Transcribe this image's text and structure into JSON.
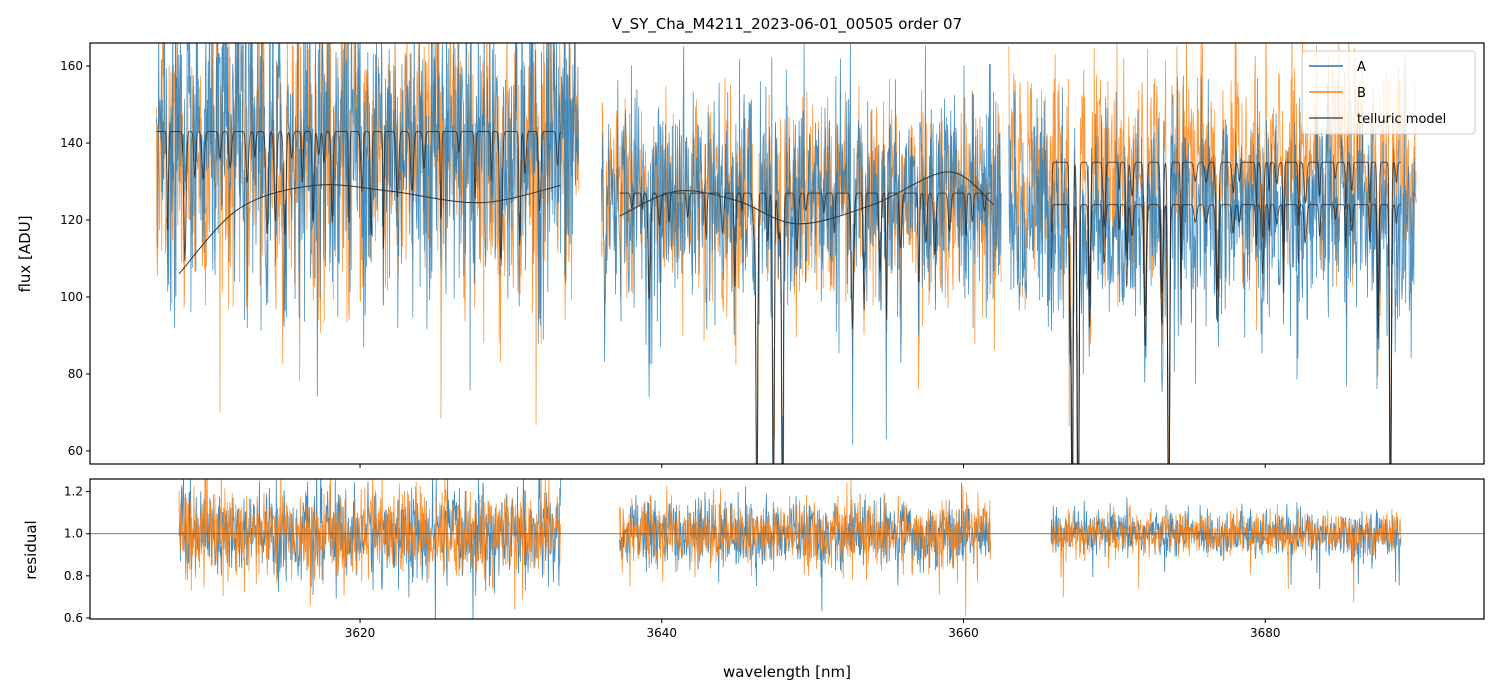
{
  "chart_data": {
    "type": "line",
    "title": "V_SY_Cha_M4211_2023-06-01_00505  order 07",
    "xlabel": "wavelength [nm]",
    "xlim": [
      3602.1,
      3694.5
    ],
    "xticks": [
      "3620",
      "3640",
      "3660",
      "3680"
    ],
    "xtick_values": [
      3620,
      3640,
      3660,
      3680
    ],
    "grid": false,
    "legend_position": "top-right",
    "panels": [
      {
        "name": "flux",
        "ylabel": "flux [ADU]",
        "ylim": [
          56.6,
          166
        ],
        "yticks": [
          "60",
          "80",
          "100",
          "120",
          "140",
          "160"
        ],
        "ytick_values": [
          60,
          80,
          100,
          120,
          140,
          160
        ],
        "series": [
          {
            "name": "A",
            "color": "#1f77b4",
            "segments": [
              [
                3606.5,
                3634.5
              ],
              [
                3636.0,
                3662.5
              ],
              [
                3663.0,
                3690.0
              ]
            ],
            "level": [
              142,
              127,
              123
            ],
            "noise": 14
          },
          {
            "name": "B",
            "color": "#ff7f0e",
            "segments": [
              [
                3606.5,
                3634.5
              ],
              [
                3636.0,
                3662.5
              ],
              [
                3663.0,
                3690.0
              ]
            ],
            "level": [
              140,
              127,
              136
            ],
            "noise": 13
          },
          {
            "name": "telluric model",
            "color": "#333333",
            "upper": [
              [
                3606.5,
                3633.3,
                143
              ],
              [
                3637.2,
                3661.8,
                127
              ],
              [
                3665.8,
                3689.0,
                135
              ]
            ],
            "lower": [
              [
                3665.8,
                3689.0,
                124
              ]
            ],
            "continuum": [
              [
                3608,
                106
              ],
              [
                3612,
                123
              ],
              [
                3617,
                129
              ],
              [
                3622,
                127.5
              ],
              [
                3628,
                124.5
              ],
              [
                3633.3,
                129
              ],
              null,
              [
                3637.2,
                121
              ],
              [
                3641,
                127.5
              ],
              [
                3645,
                125
              ],
              [
                3649,
                119
              ],
              [
                3654,
                124
              ],
              [
                3659,
                132.5
              ],
              [
                3662,
                124
              ]
            ]
          }
        ]
      },
      {
        "name": "residual",
        "ylabel": "residual",
        "ylim": [
          0.595,
          1.26
        ],
        "yticks": [
          "0.6",
          "0.8",
          "1.0",
          "1.2"
        ],
        "ytick_values": [
          0.6,
          0.8,
          1.0,
          1.2
        ],
        "reference_line": 1.0,
        "segments": [
          [
            3608.0,
            3633.3
          ],
          [
            3637.2,
            3661.8
          ],
          [
            3665.8,
            3689.0
          ]
        ],
        "series": [
          {
            "name": "A",
            "color": "#1f77b4",
            "noise": [
              0.11,
              0.08,
              0.055
            ]
          },
          {
            "name": "B",
            "color": "#ff7f0e",
            "noise": [
              0.11,
              0.08,
              0.05
            ]
          }
        ]
      }
    ]
  }
}
